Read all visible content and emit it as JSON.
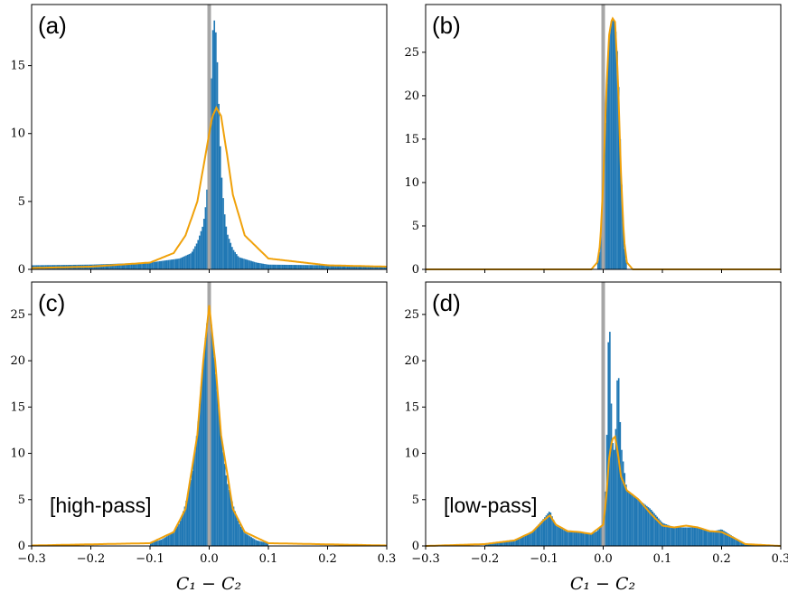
{
  "figure": {
    "xlabel_left": "C₁ − C₂",
    "xlabel_right": "C₁ − C₂",
    "colors": {
      "hist": "#1f77b4",
      "fit": "#f0a10a",
      "zero_line": "#a6a6a6",
      "axes": "#000000"
    }
  },
  "chart_data": [
    {
      "id": "a",
      "type": "bar",
      "panel_label": "(a)",
      "annotation": "",
      "xlim": [
        -0.3,
        0.3
      ],
      "ylim": [
        0,
        19.5
      ],
      "x_ticks": [
        -0.3,
        -0.2,
        -0.1,
        0.0,
        0.1,
        0.2,
        0.3
      ],
      "show_x_tick_labels": false,
      "y_ticks": [
        0,
        5,
        10,
        15
      ],
      "y_tick_labels": [
        "0",
        "5",
        "10",
        "15"
      ],
      "x": [
        -0.3,
        -0.2,
        -0.1,
        -0.05,
        -0.03,
        -0.02,
        -0.01,
        -0.005,
        0.0,
        0.002,
        0.004,
        0.006,
        0.008,
        0.01,
        0.012,
        0.014,
        0.016,
        0.018,
        0.02,
        0.025,
        0.03,
        0.04,
        0.05,
        0.08,
        0.1,
        0.2,
        0.3
      ],
      "hist_values": [
        0.3,
        0.35,
        0.5,
        0.8,
        1.2,
        2.0,
        3.3,
        5.0,
        8.5,
        11.0,
        14.5,
        17.5,
        18.4,
        18.2,
        17.0,
        15.0,
        12.5,
        10.0,
        7.5,
        4.5,
        2.7,
        1.5,
        0.9,
        0.5,
        0.35,
        0.3,
        0.25
      ],
      "fit": {
        "x": [
          -0.3,
          -0.2,
          -0.1,
          -0.06,
          -0.04,
          -0.02,
          -0.01,
          0.0,
          0.005,
          0.012,
          0.02,
          0.03,
          0.04,
          0.06,
          0.1,
          0.2,
          0.3
        ],
        "y": [
          0.1,
          0.2,
          0.5,
          1.2,
          2.5,
          5.0,
          7.5,
          10.0,
          11.2,
          11.9,
          11.3,
          8.5,
          5.5,
          2.5,
          0.8,
          0.3,
          0.2
        ]
      }
    },
    {
      "id": "b",
      "type": "bar",
      "panel_label": "(b)",
      "annotation": "",
      "xlim": [
        -0.3,
        0.3
      ],
      "ylim": [
        0,
        30.5
      ],
      "x_ticks": [
        -0.3,
        -0.2,
        -0.1,
        0.0,
        0.1,
        0.2,
        0.3
      ],
      "show_x_tick_labels": false,
      "y_ticks": [
        0,
        5,
        10,
        15,
        20,
        25
      ],
      "y_tick_labels": [
        "0",
        "5",
        "10",
        "15",
        "20",
        "25"
      ],
      "x": [
        -0.01,
        -0.005,
        0.0,
        0.005,
        0.01,
        0.015,
        0.02,
        0.025,
        0.03,
        0.035,
        0.04
      ],
      "hist_values": [
        0.5,
        2.5,
        9.0,
        19.5,
        27.0,
        28.8,
        28.5,
        24.0,
        12.0,
        3.0,
        0.5
      ],
      "fit": {
        "x": [
          -0.3,
          -0.02,
          -0.01,
          -0.005,
          0.0,
          0.005,
          0.01,
          0.015,
          0.02,
          0.025,
          0.03,
          0.035,
          0.04,
          0.05,
          0.3
        ],
        "y": [
          0.0,
          0.0,
          0.8,
          3.0,
          10.0,
          20.0,
          27.0,
          29.0,
          28.5,
          22.0,
          11.0,
          3.5,
          0.8,
          0.0,
          0.0
        ]
      }
    },
    {
      "id": "c",
      "type": "bar",
      "panel_label": "(c)",
      "annotation": "[high-pass]",
      "xlim": [
        -0.3,
        0.3
      ],
      "ylim": [
        0,
        28.5
      ],
      "x_ticks": [
        -0.3,
        -0.2,
        -0.1,
        0.0,
        0.1,
        0.2,
        0.3
      ],
      "show_x_tick_labels": true,
      "x_tick_labels": [
        "−0.3",
        "−0.2",
        "−0.1",
        "0.0",
        "0.1",
        "0.2",
        "0.3"
      ],
      "y_ticks": [
        0,
        5,
        10,
        15,
        20,
        25
      ],
      "y_tick_labels": [
        "0",
        "5",
        "10",
        "15",
        "20",
        "25"
      ],
      "x": [
        -0.1,
        -0.08,
        -0.06,
        -0.05,
        -0.04,
        -0.03,
        -0.02,
        -0.01,
        0.0,
        0.01,
        0.02,
        0.03,
        0.04,
        0.05,
        0.06,
        0.08,
        0.1
      ],
      "hist_values": [
        0.3,
        0.7,
        1.5,
        2.5,
        4.5,
        7.5,
        12.5,
        20.0,
        26.5,
        19.5,
        12.0,
        7.0,
        4.5,
        2.5,
        1.4,
        0.6,
        0.3
      ],
      "fit": {
        "x": [
          -0.3,
          -0.1,
          -0.06,
          -0.04,
          -0.02,
          -0.01,
          0.0,
          0.01,
          0.02,
          0.04,
          0.06,
          0.1,
          0.3
        ],
        "y": [
          0.05,
          0.3,
          1.5,
          4.0,
          12.0,
          20.0,
          26.0,
          20.0,
          12.0,
          4.0,
          1.5,
          0.3,
          0.05
        ]
      }
    },
    {
      "id": "d",
      "type": "bar",
      "panel_label": "(d)",
      "annotation": "[low-pass]",
      "xlim": [
        -0.3,
        0.3
      ],
      "ylim": [
        0,
        28.5
      ],
      "x_ticks": [
        -0.3,
        -0.2,
        -0.1,
        0.0,
        0.1,
        0.2,
        0.3
      ],
      "show_x_tick_labels": true,
      "x_tick_labels": [
        "−0.3",
        "−0.2",
        "−0.1",
        "0.0",
        "0.1",
        "0.2",
        "0.3"
      ],
      "y_ticks": [
        0,
        5,
        10,
        15,
        20,
        25
      ],
      "y_tick_labels": [
        "0",
        "5",
        "10",
        "15",
        "20",
        "25"
      ],
      "x": [
        -0.2,
        -0.15,
        -0.12,
        -0.1,
        -0.09,
        -0.08,
        -0.06,
        -0.04,
        -0.02,
        -0.01,
        0.0,
        0.005,
        0.01,
        0.015,
        0.02,
        0.025,
        0.03,
        0.04,
        0.06,
        0.08,
        0.1,
        0.12,
        0.14,
        0.16,
        0.18,
        0.2,
        0.22,
        0.24,
        0.26
      ],
      "hist_values": [
        0.2,
        0.5,
        1.5,
        3.0,
        3.8,
        2.2,
        1.5,
        1.5,
        1.3,
        1.6,
        2.5,
        7.0,
        27.0,
        11.5,
        10.0,
        20.5,
        11.0,
        6.0,
        5.0,
        4.0,
        2.5,
        2.0,
        2.0,
        2.0,
        1.5,
        1.8,
        1.0,
        0.2,
        0.05
      ],
      "fit": {
        "x": [
          -0.3,
          -0.2,
          -0.15,
          -0.12,
          -0.1,
          -0.09,
          -0.08,
          -0.06,
          -0.04,
          -0.02,
          0.0,
          0.005,
          0.01,
          0.015,
          0.02,
          0.025,
          0.03,
          0.04,
          0.06,
          0.08,
          0.1,
          0.12,
          0.14,
          0.16,
          0.18,
          0.2,
          0.22,
          0.24,
          0.3
        ],
        "y": [
          0.0,
          0.2,
          0.6,
          1.5,
          2.8,
          3.3,
          2.3,
          1.6,
          1.5,
          1.3,
          2.3,
          5.0,
          9.5,
          11.5,
          11.8,
          10.0,
          7.5,
          6.0,
          5.0,
          3.5,
          2.2,
          2.0,
          2.2,
          2.0,
          1.6,
          1.5,
          0.9,
          0.2,
          0.0
        ]
      }
    }
  ]
}
